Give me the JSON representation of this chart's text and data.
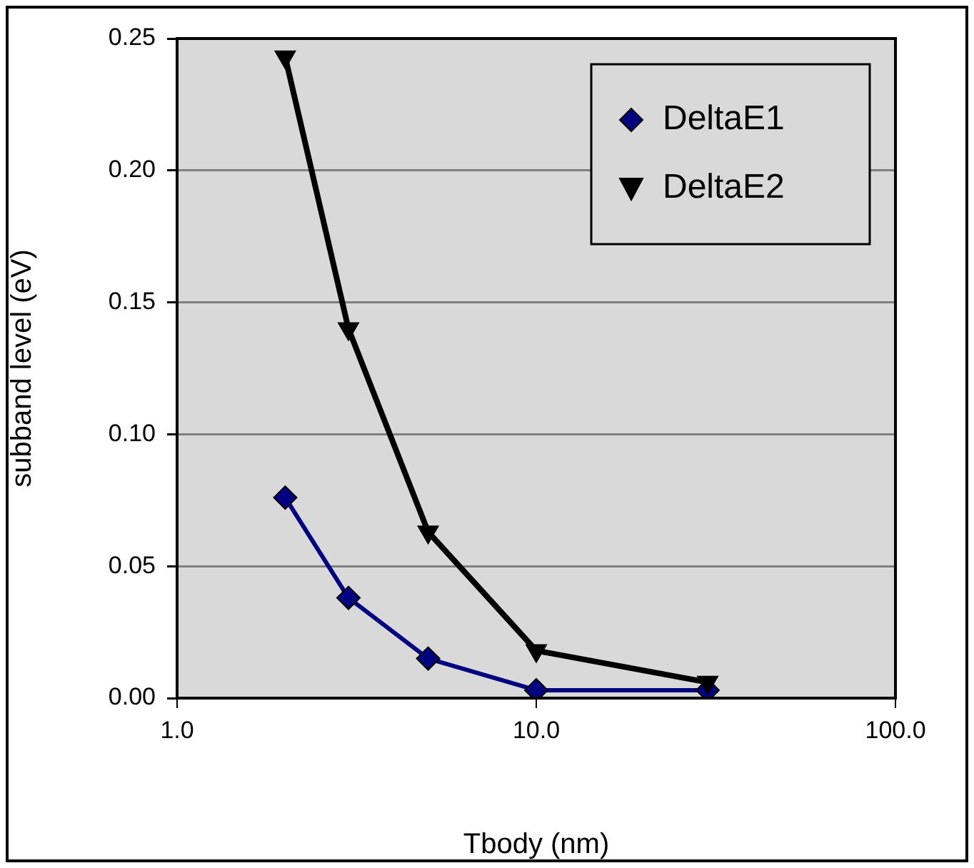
{
  "chart_data": {
    "type": "line",
    "xlabel": "Tbody (nm)",
    "ylabel": "subband level (eV)",
    "x": [
      2,
      3,
      5,
      10,
      30
    ],
    "series": [
      {
        "name": "DeltaE1",
        "color": "#000080",
        "marker": "diamond",
        "values": [
          0.076,
          0.038,
          0.015,
          0.003,
          0.003
        ]
      },
      {
        "name": "DeltaE2",
        "color": "#000000",
        "marker": "triangle",
        "values": [
          0.243,
          0.14,
          0.063,
          0.018,
          0.006
        ]
      }
    ],
    "log": "x",
    "xlim": [
      1,
      100
    ],
    "xticks": [
      {
        "value": 1,
        "label": "1.0"
      },
      {
        "value": 10,
        "label": "10.0"
      },
      {
        "value": 100,
        "label": "100.0"
      }
    ],
    "ylim": [
      0,
      0.25
    ],
    "yticks": [
      {
        "value": 0,
        "label": "0.00"
      },
      {
        "value": 0.05,
        "label": "0.05"
      },
      {
        "value": 0.1,
        "label": "0.10"
      },
      {
        "value": 0.15,
        "label": "0.15"
      },
      {
        "value": 0.2,
        "label": "0.20"
      },
      {
        "value": 0.25,
        "label": "0.25"
      }
    ],
    "grid": "y",
    "legend": "top right"
  }
}
